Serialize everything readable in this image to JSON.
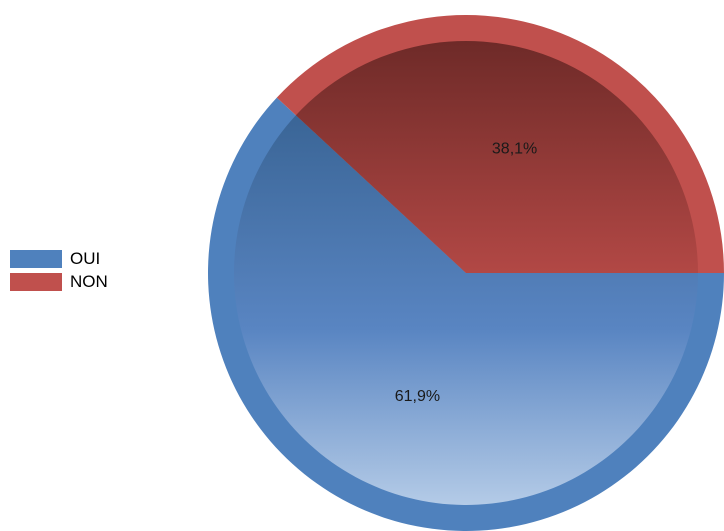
{
  "chart_data": {
    "type": "pie",
    "categories": [
      "OUI",
      "NON"
    ],
    "values": [
      61.9,
      38.1
    ],
    "value_labels": [
      "61,9%",
      "38,1%"
    ],
    "colors": [
      "#4f81bd",
      "#c0504d"
    ],
    "start_angle_deg": 0,
    "direction": "clockwise",
    "legend_placement": "left",
    "title": "",
    "xlabel": "",
    "ylabel": ""
  },
  "legend": {
    "items": [
      {
        "label": "OUI",
        "color": "#4f81bd"
      },
      {
        "label": "NON",
        "color": "#c0504d"
      }
    ]
  }
}
